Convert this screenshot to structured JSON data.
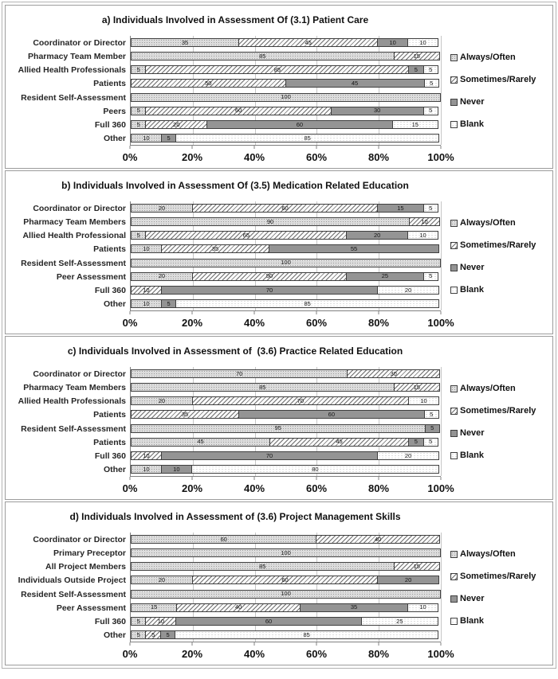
{
  "legend": {
    "items": [
      {
        "key": "always",
        "label": "Always/Often"
      },
      {
        "key": "sometimes",
        "label": "Sometimes/Rarely"
      },
      {
        "key": "never",
        "label": "Never"
      },
      {
        "key": "blank",
        "label": "Blank"
      }
    ],
    "position": "right"
  },
  "series_keys": [
    "always",
    "sometimes",
    "never",
    "blank"
  ],
  "colors": {
    "always_fill": "#dcdcdc",
    "sometimes_hatch": "#6f6f6f",
    "never_fill": "#949494",
    "blank_fill": "#ffffff",
    "segment_border": "#3f3f3f",
    "gridline": "#c6c6c6",
    "panel_border": "#9c9c9c"
  },
  "chart_data": [
    {
      "type": "bar",
      "stacked": true,
      "orientation": "horizontal",
      "title": "a) Individuals Involved in Assessment Of (3.1) Patient Care",
      "xlim": [
        0,
        100
      ],
      "x_ticks": [
        "0%",
        "20%",
        "40%",
        "60%",
        "80%",
        "100%"
      ],
      "grid": true,
      "categories": [
        "Coordinator or Director",
        "Pharmacy Team Member",
        "Allied Health Professionals",
        "Patients",
        "Resident Self-Assessment",
        "Peers",
        "Full 360",
        "Other"
      ],
      "series": [
        {
          "name": "Always/Often",
          "values": [
            35,
            85,
            5,
            0,
            100,
            5,
            5,
            10
          ]
        },
        {
          "name": "Sometimes/Rarely",
          "values": [
            45,
            15,
            85,
            50,
            0,
            60,
            20,
            0
          ]
        },
        {
          "name": "Never",
          "values": [
            10,
            0,
            5,
            45,
            0,
            30,
            60,
            5
          ]
        },
        {
          "name": "Blank",
          "values": [
            10,
            0,
            5,
            5,
            0,
            5,
            15,
            85
          ]
        }
      ]
    },
    {
      "type": "bar",
      "stacked": true,
      "orientation": "horizontal",
      "title": "b) Individuals Involved in Assessment Of (3.5) Medication Related Education",
      "xlim": [
        0,
        100
      ],
      "x_ticks": [
        "0%",
        "20%",
        "40%",
        "60%",
        "80%",
        "100%"
      ],
      "grid": true,
      "categories": [
        "Coordinator or Director",
        "Pharmacy Team Members",
        "Allied Health Professional",
        "Patients",
        "Resident Self-Assessment",
        "Peer Assessment",
        "Full 360",
        "Other"
      ],
      "series": [
        {
          "name": "Always/Often",
          "values": [
            20,
            90,
            5,
            10,
            100,
            20,
            0,
            10
          ]
        },
        {
          "name": "Sometimes/Rarely",
          "values": [
            60,
            10,
            65,
            35,
            0,
            50,
            10,
            0
          ]
        },
        {
          "name": "Never",
          "values": [
            15,
            0,
            20,
            55,
            0,
            25,
            70,
            5
          ]
        },
        {
          "name": "Blank",
          "values": [
            5,
            0,
            10,
            0,
            0,
            5,
            20,
            85
          ]
        }
      ]
    },
    {
      "type": "bar",
      "stacked": true,
      "orientation": "horizontal",
      "title": "c) Individuals Involved in Assessment of  (3.6) Practice Related Education",
      "xlim": [
        0,
        100
      ],
      "x_ticks": [
        "0%",
        "20%",
        "40%",
        "60%",
        "80%",
        "100%"
      ],
      "grid": true,
      "categories": [
        "Coordinator or Director",
        "Pharmacy Team Members",
        "Allied Health Professionals",
        "Patients",
        "Resident Self-Assessment",
        "Patients",
        "Full 360",
        "Other"
      ],
      "series": [
        {
          "name": "Always/Often",
          "values": [
            70,
            85,
            20,
            0,
            95,
            45,
            0,
            10
          ]
        },
        {
          "name": "Sometimes/Rarely",
          "values": [
            30,
            15,
            70,
            35,
            0,
            45,
            10,
            0
          ]
        },
        {
          "name": "Never",
          "values": [
            0,
            0,
            0,
            60,
            5,
            5,
            70,
            10
          ]
        },
        {
          "name": "Blank",
          "values": [
            0,
            0,
            10,
            5,
            0,
            5,
            20,
            80
          ]
        }
      ]
    },
    {
      "type": "bar",
      "stacked": true,
      "orientation": "horizontal",
      "title": "d) Individuals Involved in Assessment of (3.6) Project Management Skills",
      "xlim": [
        0,
        100
      ],
      "x_ticks": [
        "0%",
        "20%",
        "40%",
        "60%",
        "80%",
        "100%"
      ],
      "grid": true,
      "categories": [
        "Coordinator or Director",
        "Primary Preceptor",
        "All Project Members",
        "Individuals Outside Project",
        "Resident Self-Assessment",
        "Peer Assessment",
        "Full 360",
        "Other"
      ],
      "series": [
        {
          "name": "Always/Often",
          "values": [
            60,
            100,
            85,
            20,
            100,
            15,
            5,
            5
          ]
        },
        {
          "name": "Sometimes/Rarely",
          "values": [
            40,
            0,
            15,
            60,
            0,
            40,
            10,
            5
          ]
        },
        {
          "name": "Never",
          "values": [
            0,
            0,
            0,
            20,
            0,
            35,
            60,
            5
          ]
        },
        {
          "name": "Blank",
          "values": [
            0,
            0,
            0,
            0,
            0,
            10,
            25,
            85
          ]
        }
      ]
    }
  ]
}
